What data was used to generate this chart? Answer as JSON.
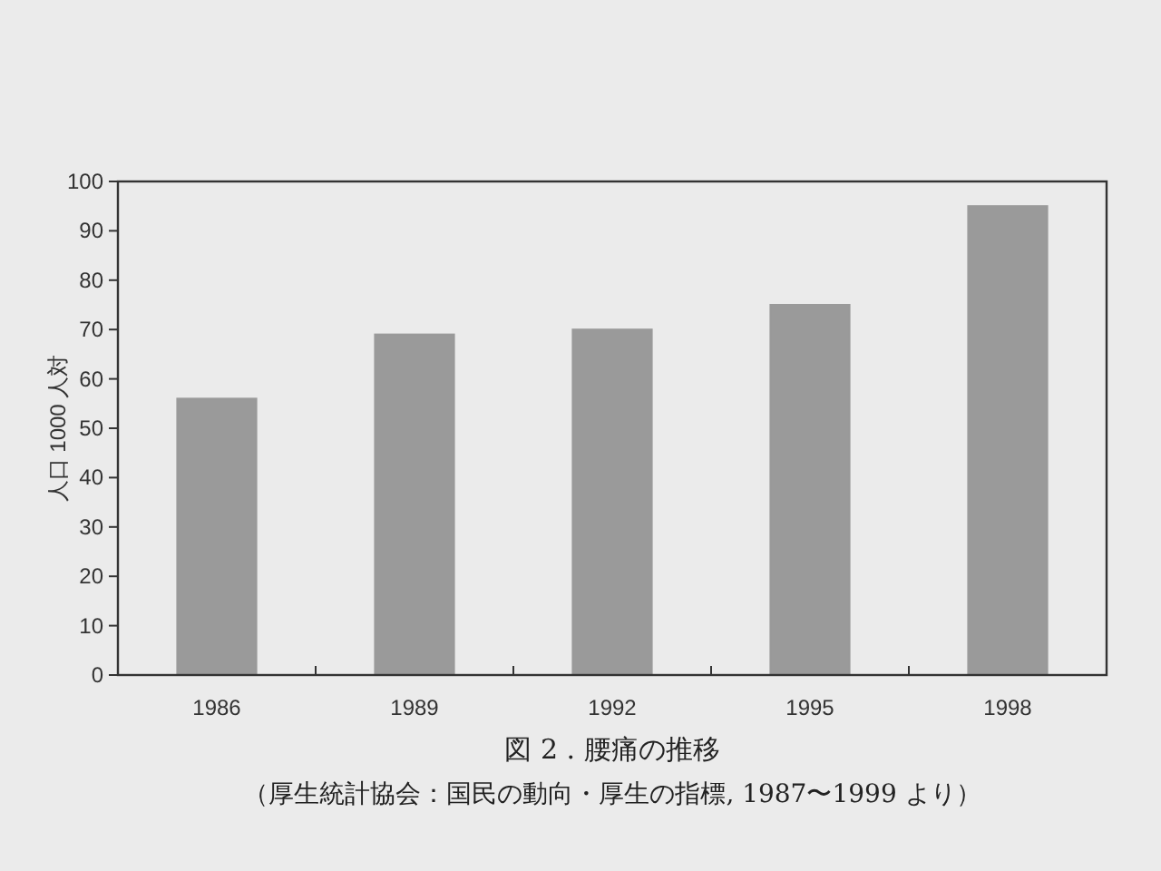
{
  "chart_data": {
    "type": "bar",
    "title": "図 2 . 腰痛の推移",
    "annotations": [
      "（厚生統計協会：国民の動向・厚生の指標, 1987〜1999 より）"
    ],
    "ylabel": "人口 1000 人対",
    "categories": [
      "1986",
      "1989",
      "1992",
      "1995",
      "1998"
    ],
    "values": [
      56,
      69,
      70,
      75,
      95
    ],
    "color": "#9a9a9a",
    "ylim": [
      0,
      100
    ],
    "yticks": [
      0,
      10,
      20,
      30,
      40,
      50,
      60,
      70,
      80,
      90,
      100
    ],
    "grid": false
  }
}
